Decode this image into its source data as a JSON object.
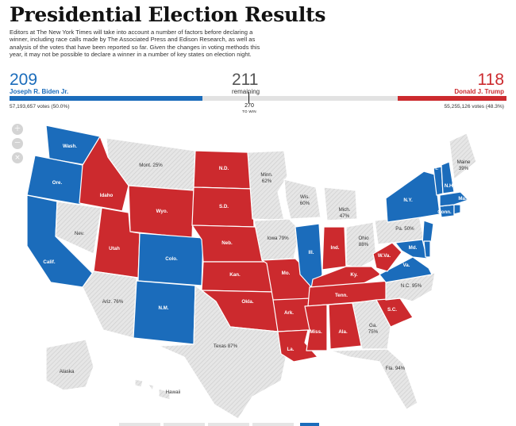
{
  "header": {
    "title": "Presidential Election Results",
    "intro": "Editors at The New York Times will take into account a number of factors before declaring a winner, including race calls made by The Associated Press and Edison Research, as well as analysis of the votes that have been reported so far. Given the changes in voting methods this year, it may not be possible to declare a winner in a number of key states on election night."
  },
  "tally": {
    "biden": {
      "electoral": "209",
      "name": "Joseph R. Biden Jr.",
      "votes": "57,193,657 votes (50.0%)",
      "share": 209
    },
    "remaining": {
      "electoral": "211",
      "label": "remaining",
      "share": 211
    },
    "trump": {
      "electoral": "118",
      "name": "Donald J. Trump",
      "votes": "55,255,126 votes (48.3%)",
      "share": 118
    },
    "threshold": {
      "value": "270",
      "label": "TO WIN"
    }
  },
  "colors": {
    "dem": "#1b6cbb",
    "rep": "#cc2a2e",
    "undecided": "#e6e6e6",
    "bar_remaining": "#e2e2e2"
  },
  "map_controls": [
    "zoom-in-icon",
    "zoom-out-icon",
    "reset-icon"
  ],
  "states": [
    {
      "id": "WA",
      "label": "Wash.",
      "status": "dem"
    },
    {
      "id": "OR",
      "label": "Ore.",
      "status": "dem"
    },
    {
      "id": "CA",
      "label": "Calif.",
      "status": "dem"
    },
    {
      "id": "ID",
      "label": "Idaho",
      "status": "rep"
    },
    {
      "id": "NV",
      "label": "Nev.",
      "status": "undecided"
    },
    {
      "id": "MT",
      "label": "Mont. 25%",
      "status": "undecided"
    },
    {
      "id": "WY",
      "label": "Wyo.",
      "status": "rep"
    },
    {
      "id": "UT",
      "label": "Utah",
      "status": "rep"
    },
    {
      "id": "AZ",
      "label": "Ariz. 76%",
      "status": "undecided"
    },
    {
      "id": "CO",
      "label": "Colo.",
      "status": "dem"
    },
    {
      "id": "NM",
      "label": "N.M.",
      "status": "dem"
    },
    {
      "id": "ND",
      "label": "N.D.",
      "status": "rep"
    },
    {
      "id": "SD",
      "label": "S.D.",
      "status": "rep"
    },
    {
      "id": "NE",
      "label": "Neb.",
      "status": "rep"
    },
    {
      "id": "KS",
      "label": "Kan.",
      "status": "rep"
    },
    {
      "id": "OK",
      "label": "Okla.",
      "status": "rep"
    },
    {
      "id": "TX",
      "label": "Texas 87%",
      "status": "undecided"
    },
    {
      "id": "MN",
      "label": "Minn. 62%",
      "status": "undecided"
    },
    {
      "id": "IA",
      "label": "Iowa 79%",
      "status": "undecided"
    },
    {
      "id": "MO",
      "label": "Mo.",
      "status": "rep"
    },
    {
      "id": "AR",
      "label": "Ark.",
      "status": "rep"
    },
    {
      "id": "LA",
      "label": "La.",
      "status": "rep"
    },
    {
      "id": "WI",
      "label": "Wis. 60%",
      "status": "undecided"
    },
    {
      "id": "IL",
      "label": "Ill.",
      "status": "dem"
    },
    {
      "id": "MI",
      "label": "Mich. 47%",
      "status": "undecided"
    },
    {
      "id": "IN",
      "label": "Ind.",
      "status": "rep"
    },
    {
      "id": "OH",
      "label": "Ohio 88%",
      "status": "undecided"
    },
    {
      "id": "KY",
      "label": "Ky.",
      "status": "rep"
    },
    {
      "id": "TN",
      "label": "Tenn.",
      "status": "rep"
    },
    {
      "id": "MS",
      "label": "Miss.",
      "status": "rep"
    },
    {
      "id": "AL",
      "label": "Ala.",
      "status": "rep"
    },
    {
      "id": "GA",
      "label": "Ga. 75%",
      "status": "undecided"
    },
    {
      "id": "FL",
      "label": "Fla. 94%",
      "status": "undecided"
    },
    {
      "id": "SC",
      "label": "S.C.",
      "status": "rep"
    },
    {
      "id": "NC",
      "label": "N.C. 95%",
      "status": "undecided"
    },
    {
      "id": "VA",
      "label": "Va.",
      "status": "dem"
    },
    {
      "id": "WV",
      "label": "W.Va.",
      "status": "rep"
    },
    {
      "id": "PA",
      "label": "Pa. 50%",
      "status": "undecided"
    },
    {
      "id": "NY",
      "label": "N.Y.",
      "status": "dem"
    },
    {
      "id": "NJ",
      "label": "N.J.",
      "status": "dem"
    },
    {
      "id": "MD",
      "label": "Md.",
      "status": "dem"
    },
    {
      "id": "DE",
      "label": "Del.",
      "status": "dem"
    },
    {
      "id": "CT",
      "label": "Conn.",
      "status": "dem"
    },
    {
      "id": "RI",
      "label": "R.I.",
      "status": "dem"
    },
    {
      "id": "MA",
      "label": "Mass.",
      "status": "dem"
    },
    {
      "id": "VT",
      "label": "Vt.",
      "status": "dem"
    },
    {
      "id": "NH",
      "label": "N.H.",
      "status": "dem"
    },
    {
      "id": "ME",
      "label": "Maine 39%",
      "status": "undecided"
    },
    {
      "id": "AK",
      "label": "Alaska",
      "status": "undecided"
    },
    {
      "id": "HI",
      "label": "Hawaii",
      "status": "undecided"
    }
  ]
}
